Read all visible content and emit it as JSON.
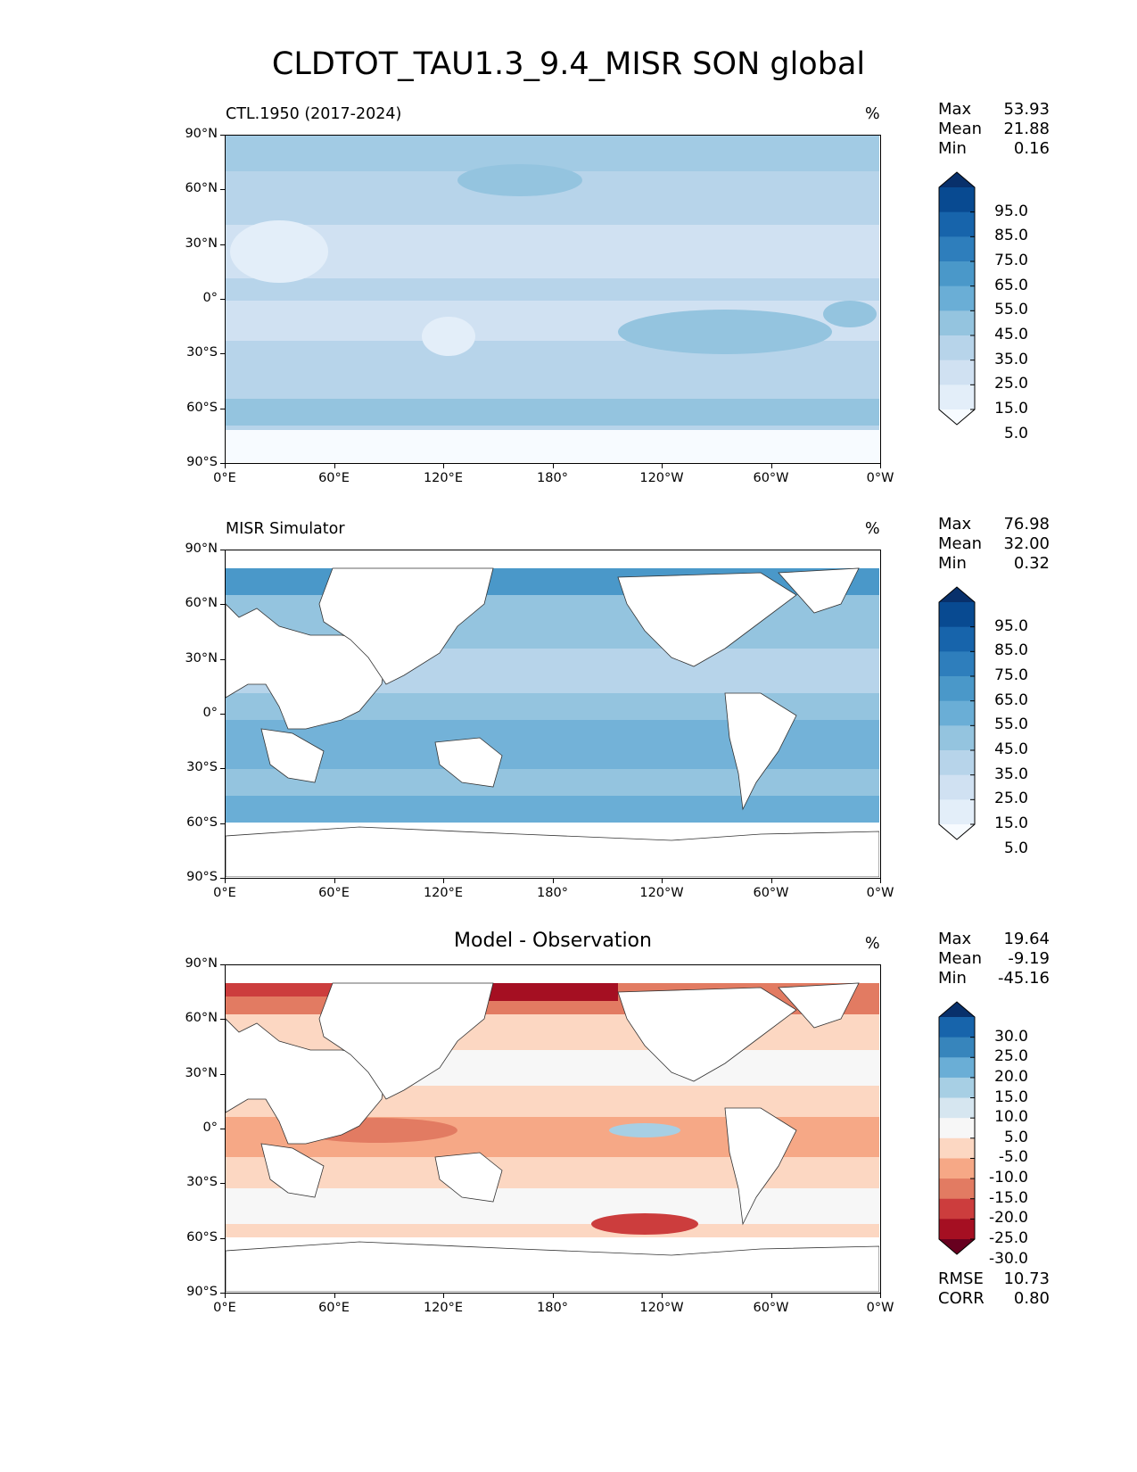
{
  "figure": {
    "title": "CLDTOT_TAU1.3_9.4_MISR SON global"
  },
  "axes": {
    "yticks": [
      "90°N",
      "60°N",
      "30°N",
      "0°",
      "30°S",
      "60°S",
      "90°S"
    ],
    "xticks": [
      "0°E",
      "60°E",
      "120°E",
      "180°",
      "120°W",
      "60°W",
      "0°W"
    ]
  },
  "panels": [
    {
      "left_label": "CTL.1950 (2017-2024)",
      "center_label": "",
      "unit": "%",
      "stats": [
        {
          "name": "Max",
          "value": "53.93"
        },
        {
          "name": "Mean",
          "value": "21.88"
        },
        {
          "name": "Min",
          "value": "0.16"
        }
      ],
      "colorbar_labels": [
        "95.0",
        "85.0",
        "75.0",
        "65.0",
        "55.0",
        "45.0",
        "35.0",
        "25.0",
        "15.0",
        "5.0"
      ],
      "colormap": "Blues"
    },
    {
      "left_label": "MISR Simulator",
      "center_label": "",
      "unit": "%",
      "stats": [
        {
          "name": "Max",
          "value": "76.98"
        },
        {
          "name": "Mean",
          "value": "32.00"
        },
        {
          "name": "Min",
          "value": "0.32"
        }
      ],
      "colorbar_labels": [
        "95.0",
        "85.0",
        "75.0",
        "65.0",
        "55.0",
        "45.0",
        "35.0",
        "25.0",
        "15.0",
        "5.0"
      ],
      "colormap": "Blues"
    },
    {
      "left_label": "",
      "center_label": "Model - Observation",
      "unit": "%",
      "stats": [
        {
          "name": "Max",
          "value": "19.64"
        },
        {
          "name": "Mean",
          "value": "-9.19"
        },
        {
          "name": "Min",
          "value": "-45.16"
        }
      ],
      "colorbar_labels": [
        "30.0",
        "25.0",
        "20.0",
        "15.0",
        "10.0",
        "5.0",
        "-5.0",
        "-10.0",
        "-15.0",
        "-20.0",
        "-25.0",
        "-30.0"
      ],
      "colormap": "RdBu_r",
      "metrics": [
        {
          "name": "RMSE",
          "value": "10.73"
        },
        {
          "name": "CORR",
          "value": "0.80"
        }
      ]
    }
  ],
  "colors": {
    "blues": [
      "#f7fbff",
      "#e3eef9",
      "#d0e1f2",
      "#b7d4ea",
      "#94c4df",
      "#6aaed6",
      "#4a98c9",
      "#2e7ebc",
      "#1764ab",
      "#084a91",
      "#08306b"
    ],
    "diff": [
      "#67001f",
      "#a50f22",
      "#cc3d3d",
      "#e27b62",
      "#f6a886",
      "#fcd7c2",
      "#f7f7f7",
      "#d6e6f0",
      "#a7cfe4",
      "#6aaed6",
      "#3785bc",
      "#1764ab",
      "#08306b"
    ]
  }
}
